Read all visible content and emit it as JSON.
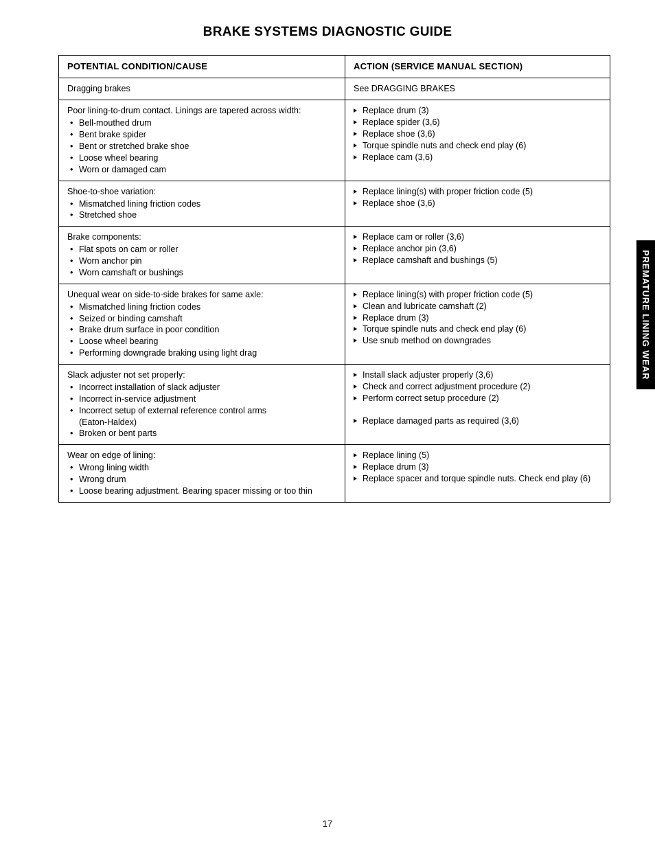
{
  "page": {
    "title": "BRAKE SYSTEMS DIAGNOSTIC GUIDE",
    "number": "17",
    "side_tab": "PREMATURE LINING WEAR"
  },
  "table": {
    "headers": {
      "left": "POTENTIAL CONDITION/CAUSE",
      "right": "ACTION (SERVICE MANUAL SECTION)"
    },
    "rows": [
      {
        "left_intro": "Dragging brakes",
        "left_bullets": [],
        "right_intro": "See DRAGGING BRAKES",
        "right_bullets": []
      },
      {
        "left_intro": "Poor lining-to-drum contact. Linings are tapered across width:",
        "left_bullets": [
          "Bell-mouthed drum",
          "Bent brake spider",
          " Bent or stretched brake shoe",
          "Loose wheel bearing",
          "Worn or damaged cam"
        ],
        "right_intro": "",
        "right_bullets": [
          "Replace drum (3)",
          "Replace spider (3,6)",
          "Replace shoe (3,6)",
          "Torque spindle nuts and check end play (6)",
          "Replace cam (3,6)"
        ]
      },
      {
        "left_intro": "Shoe-to-shoe variation:",
        "left_bullets": [
          "Mismatched lining friction codes",
          "Stretched shoe"
        ],
        "right_intro": "",
        "right_bullets": [
          "Replace lining(s) with proper friction code (5)",
          "Replace shoe (3,6)"
        ]
      },
      {
        "left_intro": "Brake components:",
        "left_bullets": [
          "Flat spots on cam or roller",
          "Worn anchor pin",
          "Worn camshaft or bushings"
        ],
        "right_intro": "",
        "right_bullets": [
          "Replace cam or roller (3,6)",
          "Replace anchor pin (3,6)",
          "Replace camshaft and bushings (5)"
        ]
      },
      {
        "left_intro": "Unequal wear on side-to-side brakes for same axle:",
        "left_bullets": [
          "Mismatched lining friction codes",
          "Seized or binding camshaft",
          "Brake drum surface in poor condition",
          "Loose wheel bearing",
          "Performing downgrade braking using light drag"
        ],
        "right_intro": "",
        "right_bullets": [
          "Replace lining(s) with proper friction code (5)",
          "Clean and lubricate camshaft (2)",
          "Replace drum (3)",
          "Torque spindle nuts and check end play (6)",
          "Use snub method on downgrades"
        ]
      },
      {
        "left_intro": "Slack adjuster not set properly:",
        "left_bullets": [
          "Incorrect installation of slack adjuster",
          "Incorrect in-service adjustment",
          "Incorrect setup of external reference control arms (Eaton-Haldex)|indent",
          "Broken or bent parts"
        ],
        "right_intro": "",
        "right_bullets": [
          "Install slack adjuster properly (3,6)",
          "Check and correct adjustment procedure (2)",
          "Perform correct setup procedure (2)",
          "|gap",
          "Replace damaged parts as required (3,6)"
        ]
      },
      {
        "left_intro": "Wear on edge of lining:",
        "left_bullets": [
          "Wrong lining width",
          "Wrong drum",
          "Loose bearing adjustment. Bearing spacer missing or too thin"
        ],
        "right_intro": "",
        "right_bullets": [
          "Replace lining (5)",
          "Replace drum (3)",
          "Replace spacer and torque spindle nuts. Check end play (6)"
        ]
      }
    ]
  }
}
